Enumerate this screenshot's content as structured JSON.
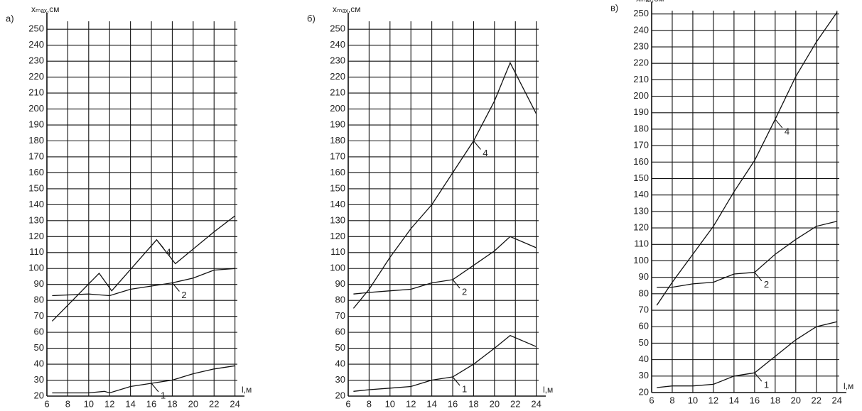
{
  "chart_data": [
    {
      "type": "line",
      "label": "а)",
      "y_label": "xₘₐₓ,см",
      "x_label": "l,м",
      "xlim": [
        6,
        24.5
      ],
      "ylim": [
        20,
        255
      ],
      "xticks": [
        6,
        8,
        10,
        12,
        14,
        16,
        18,
        20,
        22,
        24
      ],
      "yticks": [
        20,
        30,
        40,
        50,
        60,
        70,
        80,
        90,
        100,
        110,
        120,
        130,
        140,
        150,
        160,
        170,
        180,
        190,
        200,
        210,
        220,
        230,
        240,
        250
      ],
      "grid": true,
      "series": [
        {
          "name": "4",
          "color": "#111111",
          "x": [
            6.5,
            11,
            12.2,
            16.5,
            18.3,
            22,
            24
          ],
          "values": [
            67,
            97,
            86,
            118,
            103,
            123,
            133
          ]
        },
        {
          "name": "2",
          "color": "#111111",
          "x": [
            6.5,
            10,
            12,
            14,
            16,
            18,
            20,
            22,
            24
          ],
          "values": [
            83,
            84,
            83,
            87,
            89,
            91,
            94,
            99,
            100
          ]
        },
        {
          "name": "1",
          "color": "#111111",
          "x": [
            6.5,
            8,
            10,
            11.5,
            12,
            14,
            16,
            18,
            20,
            22,
            24
          ],
          "values": [
            22,
            22,
            22,
            23,
            22,
            26,
            28,
            30,
            34,
            37,
            39
          ]
        }
      ]
    },
    {
      "type": "line",
      "label": "б)",
      "y_label": "xₘₐₓ,см",
      "x_label": "l,м",
      "xlim": [
        6,
        24.5
      ],
      "ylim": [
        20,
        255
      ],
      "xticks": [
        6,
        8,
        10,
        12,
        14,
        16,
        18,
        20,
        22,
        24
      ],
      "yticks": [
        20,
        30,
        40,
        50,
        60,
        70,
        80,
        90,
        100,
        110,
        120,
        130,
        140,
        150,
        160,
        170,
        180,
        190,
        200,
        210,
        220,
        230,
        240,
        250
      ],
      "grid": true,
      "series": [
        {
          "name": "4",
          "color": "#111111",
          "x": [
            6.5,
            8,
            10,
            12,
            14,
            16,
            18,
            20,
            21.5,
            24
          ],
          "values": [
            75,
            87,
            107,
            125,
            140,
            160,
            180,
            205,
            229,
            197
          ]
        },
        {
          "name": "2",
          "color": "#111111",
          "x": [
            6.5,
            8,
            10,
            12,
            14,
            16,
            18,
            20,
            21.5,
            24
          ],
          "values": [
            84,
            85,
            86,
            87,
            91,
            93,
            102,
            111,
            120,
            113
          ]
        },
        {
          "name": "1",
          "color": "#111111",
          "x": [
            6.5,
            8,
            10,
            12,
            14,
            16,
            18,
            20,
            21.5,
            24
          ],
          "values": [
            23,
            24,
            25,
            26,
            30,
            32,
            40,
            50,
            58,
            51
          ]
        }
      ]
    },
    {
      "type": "line",
      "label": "в)",
      "y_label": "xₘₐₓ,см",
      "x_label": "l,м",
      "xlim": [
        6,
        24.5
      ],
      "ylim": [
        20,
        252
      ],
      "xticks": [
        6,
        8,
        10,
        12,
        14,
        16,
        18,
        20,
        22,
        24
      ],
      "yticks": [
        20,
        30,
        40,
        50,
        60,
        70,
        80,
        90,
        100,
        110,
        120,
        130,
        140,
        150,
        160,
        170,
        180,
        190,
        200,
        210,
        220,
        230,
        240,
        250
      ],
      "grid": true,
      "series": [
        {
          "name": "4",
          "color": "#111111",
          "x": [
            6.5,
            8,
            10,
            12,
            14,
            16,
            18,
            20,
            22,
            24
          ],
          "values": [
            73,
            87,
            104,
            121,
            142,
            161,
            186,
            212,
            233,
            251
          ]
        },
        {
          "name": "2",
          "color": "#111111",
          "x": [
            6.5,
            8,
            10,
            12,
            14,
            16,
            18,
            20,
            22,
            24
          ],
          "values": [
            84,
            84,
            86,
            87,
            92,
            93,
            104,
            113,
            121,
            124
          ]
        },
        {
          "name": "1",
          "color": "#111111",
          "x": [
            6.5,
            8,
            10,
            12,
            14,
            16,
            18,
            20,
            22,
            24
          ],
          "values": [
            23,
            24,
            24,
            25,
            30,
            32,
            42,
            52,
            60,
            63
          ]
        }
      ]
    }
  ]
}
